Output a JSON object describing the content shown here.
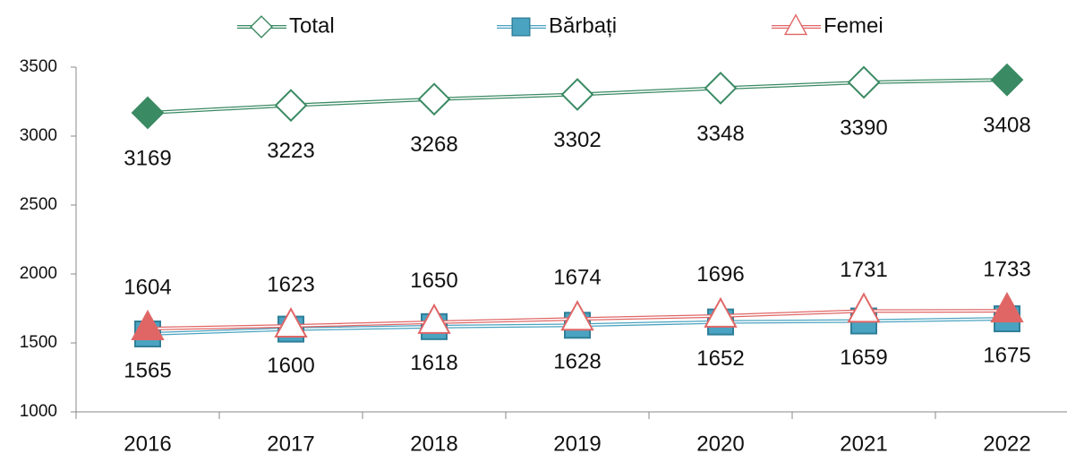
{
  "chart_data": {
    "type": "line",
    "categories": [
      "2016",
      "2017",
      "2018",
      "2019",
      "2020",
      "2021",
      "2022"
    ],
    "series": [
      {
        "name": "Total",
        "color": "#3a8a63",
        "marker": "diamond",
        "values": [
          3169,
          3223,
          3268,
          3302,
          3348,
          3390,
          3408
        ]
      },
      {
        "name": "Bărbați",
        "color": "#4aa3c0",
        "marker": "square",
        "values": [
          1565,
          1600,
          1618,
          1628,
          1652,
          1659,
          1675
        ]
      },
      {
        "name": "Femei",
        "color": "#e06666",
        "marker": "triangle",
        "values": [
          1604,
          1623,
          1650,
          1674,
          1696,
          1731,
          1733
        ]
      }
    ],
    "ylim": [
      1000,
      3500
    ],
    "yticks": [
      1000,
      1500,
      2000,
      2500,
      3000,
      3500
    ],
    "grid": false,
    "legend": "top"
  }
}
